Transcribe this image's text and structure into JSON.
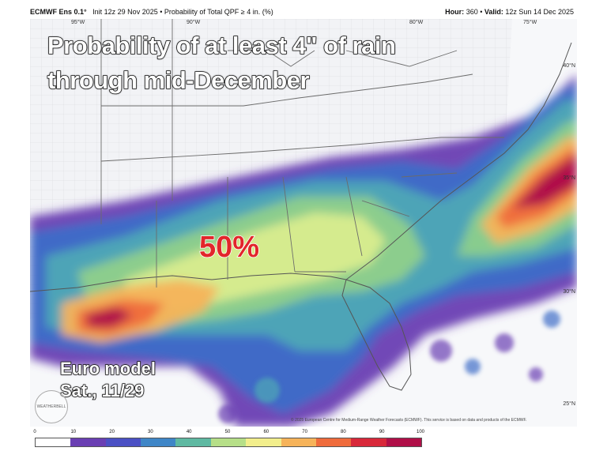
{
  "header": {
    "model": "ECMWF Ens 0.1°",
    "init": "Init 12z 29 Nov 2025",
    "field": "Probability of Total QPF ≥ 4 in. (%)",
    "hour_label": "Hour:",
    "hour_value": "360",
    "valid_label": "Valid:",
    "valid_value": "12z Sun 14 Dec 2025"
  },
  "overlay": {
    "title_line1": "Probability of at least 4\" of rain",
    "title_line2": "through mid-December",
    "probability_callout": "50%",
    "model_line1": "Euro model",
    "model_line2": "Sat., 11/29"
  },
  "axis_labels": {
    "lon": [
      "95°W",
      "90°W",
      "80°W",
      "75°W"
    ],
    "lat": [
      "40°N",
      "35°N",
      "30°N",
      "25°N"
    ]
  },
  "copyright": "© 2025 European Centre for Medium-Range Weather Forecasts (ECMWF). This service is based on data and products of the ECMWF.",
  "watermark": "WEATHERBELL",
  "colorbar": {
    "ticks": [
      "0",
      "10",
      "20",
      "30",
      "40",
      "50",
      "60",
      "70",
      "80",
      "90",
      "100"
    ],
    "colors": [
      "#ffffff",
      "#6a3fb3",
      "#4b50c4",
      "#3f86c7",
      "#5fb9a2",
      "#b6df88",
      "#f2ee8c",
      "#f6b35a",
      "#ef6b3c",
      "#d8283a",
      "#b00f48"
    ]
  },
  "colors": {
    "state_borders": "#6b6b6b",
    "county_borders": "#c8c8c8",
    "callout": "#e2262a"
  }
}
